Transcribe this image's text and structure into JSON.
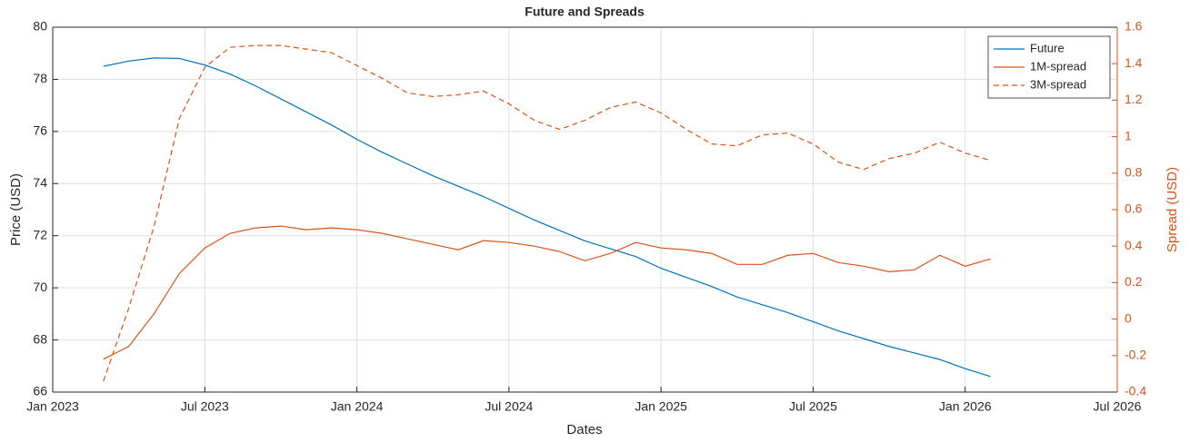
{
  "chart_data": {
    "type": "line",
    "title": "Future and Spreads",
    "x_label": "Dates",
    "y_label": "Price (USD)",
    "y2_label": "Spread (USD)",
    "x": [
      "2023-03",
      "2023-04",
      "2023-05",
      "2023-06",
      "2023-07",
      "2023-08",
      "2023-09",
      "2023-10",
      "2023-11",
      "2023-12",
      "2024-01",
      "2024-02",
      "2024-03",
      "2024-04",
      "2024-05",
      "2024-06",
      "2024-07",
      "2024-08",
      "2024-09",
      "2024-10",
      "2024-11",
      "2024-12",
      "2025-01",
      "2025-02",
      "2025-03",
      "2025-04",
      "2025-05",
      "2025-06",
      "2025-07",
      "2025-08",
      "2025-09",
      "2025-10",
      "2025-11",
      "2025-12",
      "2026-01",
      "2026-02"
    ],
    "series": [
      {
        "name": "Future",
        "color": "#0072bd",
        "line_style": "solid",
        "values": [
          78.5,
          78.7,
          78.82,
          78.8,
          78.55,
          78.2,
          77.75,
          77.25,
          76.75,
          76.25,
          75.7,
          75.2,
          74.75,
          74.3,
          73.9,
          73.5,
          73.05,
          72.6,
          72.2,
          71.8,
          71.5,
          71.2,
          70.75,
          70.4,
          70.05,
          69.65,
          69.35,
          69.05,
          68.7,
          68.35,
          68.05,
          67.75,
          67.5,
          67.25,
          66.9,
          66.6
        ]
      },
      {
        "name": "1M-spread",
        "color": "#d95319",
        "line_style": "solid",
        "axis": "y2",
        "values": [
          -0.22,
          -0.15,
          0.03,
          0.25,
          0.39,
          0.47,
          0.5,
          0.51,
          0.49,
          0.5,
          0.49,
          0.47,
          0.44,
          0.41,
          0.38,
          0.43,
          0.42,
          0.4,
          0.37,
          0.32,
          0.36,
          0.42,
          0.39,
          0.38,
          0.36,
          0.3,
          0.3,
          0.35,
          0.36,
          0.31,
          0.29,
          0.26,
          0.27,
          0.35,
          0.29,
          0.33
        ]
      },
      {
        "name": "3M-spread",
        "color": "#d95319",
        "line_style": "dashed",
        "axis": "y2",
        "values": [
          -0.34,
          0.06,
          0.51,
          1.1,
          1.38,
          1.49,
          1.5,
          1.5,
          1.48,
          1.46,
          1.39,
          1.32,
          1.24,
          1.22,
          1.23,
          1.25,
          1.18,
          1.09,
          1.04,
          1.09,
          1.16,
          1.19,
          1.13,
          1.04,
          0.96,
          0.95,
          1.01,
          1.02,
          0.96,
          0.86,
          0.82,
          0.88,
          0.91,
          0.97,
          0.91,
          0.87
        ]
      }
    ],
    "xlim": [
      "2023-01",
      "2026-07"
    ],
    "xticks": [
      {
        "value": "2023-01",
        "label": "Jan 2023"
      },
      {
        "value": "2023-07",
        "label": "Jul 2023"
      },
      {
        "value": "2024-01",
        "label": "Jan 2024"
      },
      {
        "value": "2024-07",
        "label": "Jul 2024"
      },
      {
        "value": "2025-01",
        "label": "Jan 2025"
      },
      {
        "value": "2025-07",
        "label": "Jul 2025"
      },
      {
        "value": "2026-01",
        "label": "Jan 2026"
      },
      {
        "value": "2026-07",
        "label": "Jul 2026"
      }
    ],
    "ylim": [
      66,
      80
    ],
    "yticks": [
      66,
      68,
      70,
      72,
      74,
      76,
      78,
      80
    ],
    "y2lim": [
      -0.4,
      1.6
    ],
    "y2ticks": [
      -0.4,
      -0.2,
      0,
      0.2,
      0.4,
      0.6,
      0.8,
      1,
      1.2,
      1.4,
      1.6
    ],
    "y2_color": "#d95319",
    "grid": true,
    "legend": "top-right"
  }
}
